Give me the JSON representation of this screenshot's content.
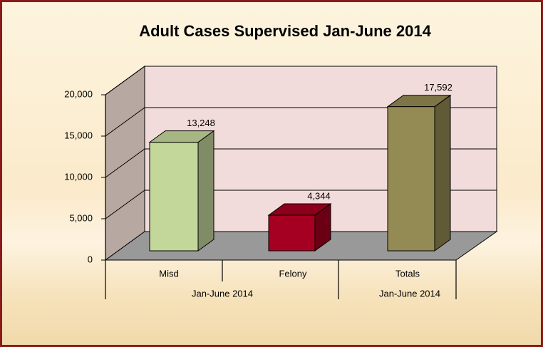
{
  "chart_data": {
    "type": "bar3d",
    "title": "Adult Cases Supervised Jan-June 2014",
    "categories": [
      "Misd",
      "Felony",
      "Totals"
    ],
    "group_labels": [
      "Jan-June 2014",
      "Jan-June 2014"
    ],
    "values": [
      13248,
      4344,
      17592
    ],
    "value_labels": [
      "13,248",
      "4,344",
      "17,592"
    ],
    "colors": [
      "#c4d79b",
      "#a50021",
      "#948a54"
    ],
    "ylim": [
      0,
      20000
    ],
    "yticks": [
      0,
      {
        "value": 5000,
        "label": "5,000"
      },
      {
        "value": 10000,
        "label": "10,000"
      },
      {
        "value": 15000,
        "label": "15,000"
      },
      {
        "value": 20000,
        "label": "20,000"
      }
    ],
    "grid": true
  }
}
